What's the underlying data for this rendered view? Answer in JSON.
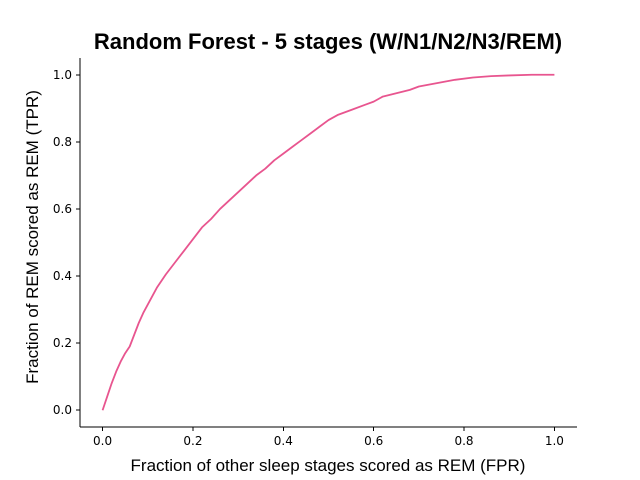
{
  "chart_data": {
    "type": "line",
    "title": "Random Forest - 5 stages (W/N1/N2/N3/REM)",
    "xlabel": "Fraction of other sleep stages scored as REM (FPR)",
    "ylabel": "Fraction of REM scored as REM (TPR)",
    "xlim": [
      -0.05,
      1.05
    ],
    "ylim": [
      -0.05,
      1.05
    ],
    "xticks": [
      "0.0",
      "0.2",
      "0.4",
      "0.6",
      "0.8",
      "1.0"
    ],
    "yticks": [
      "0.0",
      "0.2",
      "0.4",
      "0.6",
      "0.8",
      "1.0"
    ],
    "grid": false,
    "series": [
      {
        "color": "#e8558f",
        "x": [
          0.0,
          0.01,
          0.02,
          0.03,
          0.04,
          0.05,
          0.06,
          0.07,
          0.08,
          0.09,
          0.1,
          0.12,
          0.14,
          0.16,
          0.18,
          0.2,
          0.22,
          0.24,
          0.26,
          0.28,
          0.3,
          0.32,
          0.34,
          0.36,
          0.38,
          0.4,
          0.42,
          0.44,
          0.46,
          0.48,
          0.5,
          0.52,
          0.55,
          0.58,
          0.6,
          0.62,
          0.65,
          0.68,
          0.7,
          0.74,
          0.78,
          0.82,
          0.86,
          0.9,
          0.95,
          1.0
        ],
        "y": [
          0.0,
          0.04,
          0.08,
          0.115,
          0.145,
          0.17,
          0.19,
          0.225,
          0.26,
          0.29,
          0.315,
          0.365,
          0.405,
          0.44,
          0.475,
          0.51,
          0.545,
          0.57,
          0.6,
          0.625,
          0.65,
          0.675,
          0.7,
          0.72,
          0.745,
          0.765,
          0.785,
          0.805,
          0.825,
          0.845,
          0.865,
          0.88,
          0.895,
          0.91,
          0.92,
          0.935,
          0.945,
          0.955,
          0.965,
          0.975,
          0.985,
          0.992,
          0.996,
          0.998,
          1.0,
          1.0
        ]
      }
    ]
  }
}
